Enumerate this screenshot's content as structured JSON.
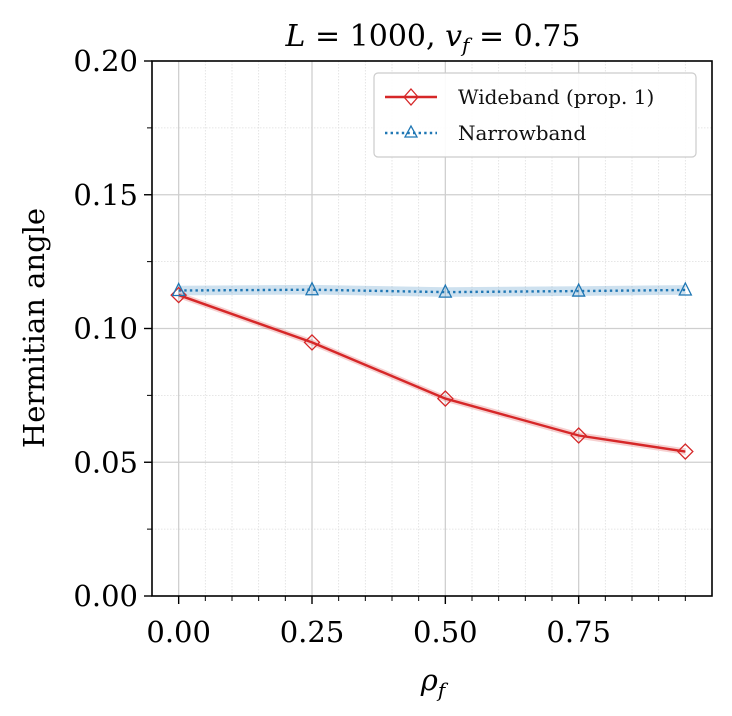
{
  "chart_data": {
    "type": "line",
    "title": "L = 1000, v_f = 0.75",
    "title_parts": {
      "l": "L",
      "eq1": " = 1000, ",
      "v": "v",
      "sub": "f",
      "eq2": " = 0.75"
    },
    "xlabel": "ρ_f",
    "xlabel_parts": {
      "rho": "ρ",
      "sub": "f"
    },
    "ylabel": "Hermitian angle",
    "xlim": [
      -0.05,
      1.0
    ],
    "ylim": [
      0.0,
      0.2
    ],
    "xticks": [
      0.0,
      0.25,
      0.5,
      0.75
    ],
    "xtick_labels": [
      "0.00",
      "0.25",
      "0.50",
      "0.75"
    ],
    "yticks": [
      0.0,
      0.05,
      0.1,
      0.15,
      0.2
    ],
    "ytick_labels": [
      "0.00",
      "0.05",
      "0.10",
      "0.15",
      "0.20"
    ],
    "grid": true,
    "legend_position": "top-right",
    "x": [
      0.0,
      0.25,
      0.5,
      0.75,
      0.95
    ],
    "series": [
      {
        "name": "Wideband (prop. 1)",
        "values": [
          0.1125,
          0.0948,
          0.0738,
          0.06,
          0.054
        ],
        "band": 0.0012,
        "color": "#d62728",
        "marker": "diamond",
        "linestyle": "solid"
      },
      {
        "name": "Narrowband",
        "values": [
          0.1142,
          0.1145,
          0.1136,
          0.114,
          0.1144
        ],
        "band": 0.0018,
        "color": "#1f77b4",
        "marker": "triangle",
        "linestyle": "dotted"
      }
    ]
  }
}
